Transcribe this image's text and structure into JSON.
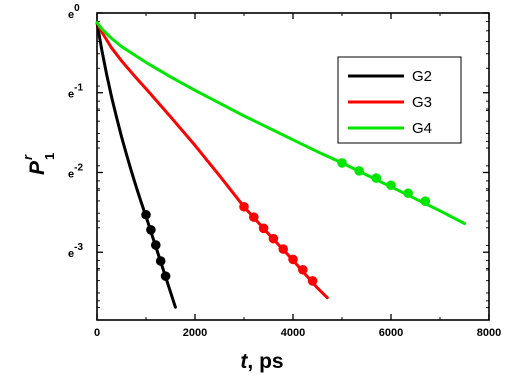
{
  "chart_data": {
    "type": "line",
    "title": "",
    "xlabel": {
      "main": "t",
      "unit": ", ps"
    },
    "ylabel": {
      "main": "P",
      "superscript": "r",
      "subscript": "1"
    },
    "xlim": [
      0,
      8000
    ],
    "ylim": [
      -3.85,
      0
    ],
    "y_scale": "natural-log (ln P)",
    "x_ticks": [
      0,
      2000,
      4000,
      6000,
      8000
    ],
    "x_tick_labels": [
      "0",
      "2000",
      "4000",
      "6000",
      "8000"
    ],
    "y_ticks": [
      0,
      -1,
      -2,
      -3
    ],
    "y_tick_labels": [
      {
        "base": "e",
        "exp": "0"
      },
      {
        "base": "e",
        "exp": "-1"
      },
      {
        "base": "e",
        "exp": "-2"
      },
      {
        "base": "e",
        "exp": "-3"
      }
    ],
    "legend_position": "top-right",
    "grid": false,
    "series": [
      {
        "name": "G2",
        "color": "#000000",
        "curve_x": [
          0,
          50,
          100,
          200,
          300,
          400,
          500,
          600,
          700,
          800,
          900,
          1000,
          1100,
          1200,
          1300,
          1400,
          1500,
          1600
        ],
        "curve_lnP": [
          -0.12,
          -0.3,
          -0.47,
          -0.78,
          -1.06,
          -1.31,
          -1.55,
          -1.77,
          -1.98,
          -2.18,
          -2.37,
          -2.55,
          -2.74,
          -2.93,
          -3.12,
          -3.31,
          -3.5,
          -3.69
        ],
        "marker_x": [
          1000,
          1100,
          1200,
          1300,
          1400
        ],
        "marker_lnP": [
          -2.53,
          -2.72,
          -2.91,
          -3.11,
          -3.3
        ]
      },
      {
        "name": "G3",
        "color": "#ff0000",
        "curve_x": [
          0,
          100,
          300,
          500,
          750,
          1000,
          1500,
          2000,
          2500,
          3000,
          3500,
          4000,
          4500,
          4700
        ],
        "curve_lnP": [
          -0.12,
          -0.24,
          -0.44,
          -0.6,
          -0.78,
          -0.95,
          -1.3,
          -1.66,
          -2.04,
          -2.43,
          -2.77,
          -3.1,
          -3.45,
          -3.57
        ],
        "marker_x": [
          3000,
          3200,
          3400,
          3600,
          3800,
          4000,
          4200,
          4400
        ],
        "marker_lnP": [
          -2.43,
          -2.56,
          -2.7,
          -2.83,
          -2.96,
          -3.09,
          -3.22,
          -3.36
        ]
      },
      {
        "name": "G4",
        "color": "#00e600",
        "curve_x": [
          0,
          100,
          300,
          500,
          1000,
          1500,
          2000,
          2500,
          3000,
          3500,
          4000,
          4500,
          5000,
          5500,
          6000,
          6500,
          7000,
          7500
        ],
        "curve_lnP": [
          -0.12,
          -0.2,
          -0.32,
          -0.42,
          -0.62,
          -0.8,
          -0.97,
          -1.13,
          -1.29,
          -1.44,
          -1.59,
          -1.74,
          -1.88,
          -2.03,
          -2.18,
          -2.33,
          -2.48,
          -2.64
        ],
        "marker_x": [
          5000,
          5350,
          5700,
          6000,
          6350,
          6700
        ],
        "marker_lnP": [
          -1.88,
          -1.98,
          -2.07,
          -2.16,
          -2.26,
          -2.36
        ]
      }
    ]
  }
}
